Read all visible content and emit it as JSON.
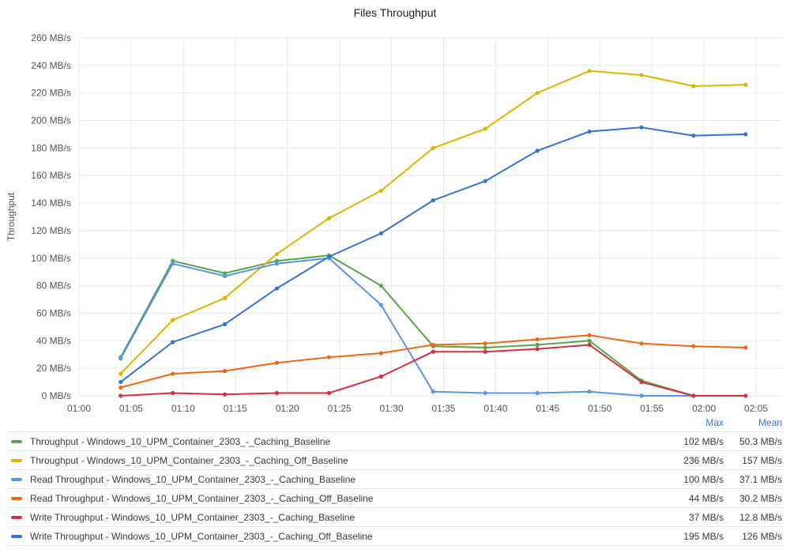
{
  "chart_data": {
    "type": "line",
    "title": "Files Throughput",
    "ylabel": "Throughput",
    "xlabel": "",
    "y_unit": "MB/s",
    "ylim": [
      0,
      260
    ],
    "y_ticks": [
      0,
      20,
      40,
      60,
      80,
      100,
      120,
      140,
      160,
      180,
      200,
      220,
      240,
      260
    ],
    "y_tick_labels": [
      "0 MB/s",
      "20 MB/s",
      "40 MB/s",
      "60 MB/s",
      "80 MB/s",
      "100 MB/s",
      "120 MB/s",
      "140 MB/s",
      "160 MB/s",
      "180 MB/s",
      "200 MB/s",
      "220 MB/s",
      "240 MB/s",
      "260 MB/s"
    ],
    "x_ticks": [
      "01:00",
      "01:05",
      "01:10",
      "01:15",
      "01:20",
      "01:25",
      "01:30",
      "01:35",
      "01:40",
      "01:45",
      "01:50",
      "01:55",
      "02:00",
      "02:05"
    ],
    "x": [
      "01:04",
      "01:09",
      "01:14",
      "01:19",
      "01:24",
      "01:29",
      "01:34",
      "01:39",
      "01:44",
      "01:49",
      "01:54",
      "01:59",
      "02:04"
    ],
    "grid": true,
    "legend_position": "bottom",
    "legend_columns": [
      "Max",
      "Mean"
    ],
    "series": [
      {
        "name": "Throughput - Windows_10_UPM_Container_2303_-_Caching_Baseline",
        "color": "#56a64b",
        "values": [
          28,
          98,
          89,
          98,
          102,
          80,
          36,
          35,
          37,
          40,
          11,
          0,
          null
        ],
        "max": "102 MB/s",
        "mean": "50.3 MB/s"
      },
      {
        "name": "Throughput - Windows_10_UPM_Container_2303_-_Caching_Off_Baseline",
        "color": "#e0b400",
        "values": [
          16,
          55,
          71,
          103,
          129,
          149,
          180,
          194,
          220,
          236,
          233,
          225,
          226
        ],
        "max": "236 MB/s",
        "mean": "157 MB/s"
      },
      {
        "name": "Read Throughput - Windows_10_UPM_Container_2303_-_Caching_Baseline",
        "color": "#5794f2",
        "values": [
          27,
          96,
          87,
          96,
          100,
          66,
          3,
          2,
          2,
          3,
          0,
          0,
          null
        ],
        "max": "100 MB/s",
        "mean": "37.1 MB/s"
      },
      {
        "name": "Read Throughput - Windows_10_UPM_Container_2303_-_Caching_Off_Baseline",
        "color": "#f2670f",
        "values": [
          6,
          16,
          18,
          24,
          28,
          31,
          37,
          38,
          41,
          44,
          38,
          36,
          35
        ],
        "max": "44 MB/s",
        "mean": "30.2 MB/s"
      },
      {
        "name": "Write Throughput - Windows_10_UPM_Container_2303_-_Caching_Baseline",
        "color": "#d6303f",
        "values": [
          0,
          2,
          1,
          2,
          2,
          14,
          32,
          32,
          34,
          37,
          10,
          0,
          0
        ],
        "max": "37 MB/s",
        "mean": "12.8 MB/s"
      },
      {
        "name": "Write Throughput - Windows_10_UPM_Container_2303_-_Caching_Off_Baseline",
        "color": "#3274d9",
        "values": [
          10,
          39,
          52,
          78,
          101,
          118,
          142,
          156,
          178,
          192,
          195,
          189,
          190
        ],
        "max": "195 MB/s",
        "mean": "126 MB/s"
      }
    ]
  }
}
